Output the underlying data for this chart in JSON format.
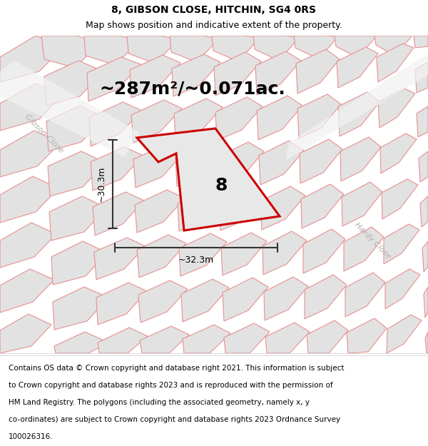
{
  "title": "8, GIBSON CLOSE, HITCHIN, SG4 0RS",
  "subtitle": "Map shows position and indicative extent of the property.",
  "area_label": "~287m²/~0.071ac.",
  "number_label": "8",
  "dim_width": "~32.3m",
  "dim_height": "~30.3m",
  "road_label_left": "Gibson Close",
  "road_label_right": "Hardy Close",
  "footer_lines": [
    "Contains OS data © Crown copyright and database right 2021. This information is subject",
    "to Crown copyright and database rights 2023 and is reproduced with the permission of",
    "HM Land Registry. The polygons (including the associated geometry, namely x, y",
    "co-ordinates) are subject to Crown copyright and database rights 2023 Ordnance Survey",
    "100026316."
  ],
  "map_bg": "#ebebeb",
  "plot_outline_color": "#cc0000",
  "plot_fill_color": "#e8e8e8",
  "building_fill": "#e2e2e2",
  "building_edge": "#e89090",
  "title_fontsize": 10,
  "subtitle_fontsize": 9,
  "area_fontsize": 18,
  "dim_fontsize": 9,
  "road_fontsize": 8,
  "footer_fontsize": 7.5,
  "number_fontsize": 18
}
